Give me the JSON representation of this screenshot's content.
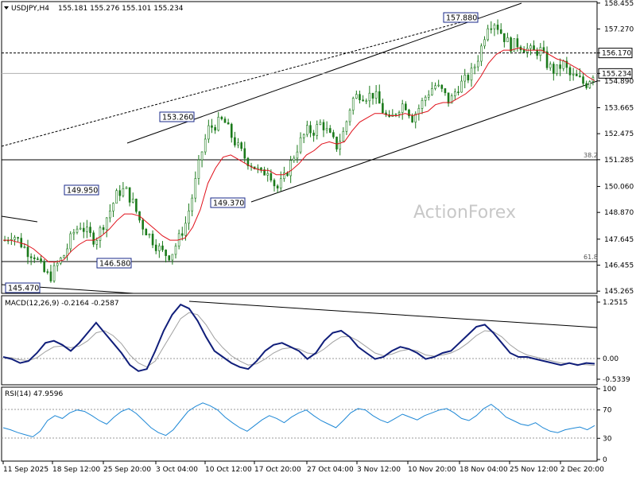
{
  "header": {
    "symbol": "USDJPY,H4",
    "ohlc": "155.181 155.276 155.101 155.234"
  },
  "watermark": "ActionForex",
  "chart_data": [
    {
      "type": "candlestick",
      "name": "price-panel",
      "ylim": [
        145.2,
        158.45
      ],
      "price_ticks": [
        "158.455",
        "157.270",
        "156.170",
        "155.234",
        "154.890",
        "153.665",
        "152.475",
        "151.285",
        "150.060",
        "148.870",
        "147.645",
        "146.455",
        "145.265"
      ],
      "x_labels": [
        "11 Sep 2025",
        "18 Sep 12:00",
        "25 Sep 20:00",
        "3 Oct 04:00",
        "10 Oct 12:00",
        "17 Oct 20:00",
        "27 Oct 04:00",
        "3 Nov 12:00",
        "10 Nov 20:00",
        "18 Nov 04:00",
        "25 Nov 12:00",
        "2 Dec 20:00"
      ],
      "swing_labels": [
        {
          "text": "157.880",
          "value": 157.88
        },
        {
          "text": "153.260",
          "value": 153.26
        },
        {
          "text": "149.950",
          "value": 149.95
        },
        {
          "text": "149.370",
          "value": 149.37
        },
        {
          "text": "146.580",
          "value": 146.58
        },
        {
          "text": "145.470",
          "value": 145.47
        }
      ],
      "horizontal_levels": [
        {
          "value": 156.17,
          "label": "156.170",
          "style": "dashed"
        },
        {
          "value": 155.234,
          "label": "155.234",
          "style": "current"
        },
        {
          "value": 151.28,
          "label": "38.2",
          "style": "solid"
        },
        {
          "value": 146.62,
          "label": "61.8",
          "style": "solid"
        }
      ],
      "close_path": [
        147.6,
        147.9,
        147.5,
        147.1,
        146.9,
        146.2,
        145.9,
        146.5,
        147.0,
        147.9,
        148.3,
        147.9,
        147.6,
        148.3,
        149.0,
        149.8,
        149.9,
        149.3,
        148.4,
        147.9,
        147.4,
        147.0,
        146.9,
        147.6,
        148.4,
        149.8,
        151.5,
        152.7,
        152.9,
        153.1,
        152.4,
        151.8,
        151.3,
        151.0,
        150.6,
        150.9,
        149.9,
        150.4,
        151.2,
        152.0,
        152.6,
        152.6,
        153.0,
        152.4,
        151.9,
        152.6,
        154.0,
        154.3,
        154.2,
        154.3,
        153.6,
        153.0,
        153.6,
        153.9,
        153.2,
        153.7,
        154.3,
        154.7,
        154.4,
        153.9,
        154.6,
        154.9,
        155.3,
        156.2,
        157.5,
        157.6,
        157.0,
        156.5,
        156.6,
        156.4,
        156.2,
        156.3,
        155.6,
        155.3,
        155.7,
        155.1,
        155.0,
        154.7,
        155.234
      ],
      "ema_path": [
        147.6,
        147.6,
        147.5,
        147.4,
        147.2,
        146.9,
        146.6,
        146.6,
        146.7,
        147.1,
        147.4,
        147.6,
        147.6,
        147.8,
        148.1,
        148.5,
        148.8,
        148.8,
        148.7,
        148.4,
        148.1,
        147.8,
        147.6,
        147.6,
        147.7,
        148.2,
        149.0,
        150.2,
        150.9,
        151.4,
        151.5,
        151.3,
        151.1,
        150.9,
        150.8,
        150.8,
        150.6,
        150.6,
        150.8,
        151.1,
        151.5,
        151.7,
        152.0,
        152.1,
        152.0,
        152.1,
        152.6,
        153.0,
        153.2,
        153.4,
        153.4,
        153.3,
        153.3,
        153.4,
        153.3,
        153.4,
        153.5,
        153.8,
        153.9,
        153.9,
        154.1,
        154.3,
        154.6,
        155.1,
        155.7,
        156.1,
        156.3,
        156.3,
        156.4,
        156.3,
        156.3,
        156.3,
        156.1,
        155.9,
        155.8,
        155.6,
        155.4,
        155.1,
        154.9
      ]
    },
    {
      "type": "line",
      "name": "macd-panel",
      "title": "MACD(12,26,9) -0.2164 -0.2587",
      "ylim": [
        -0.7,
        1.35
      ],
      "ticks": [
        "1.2515",
        "0.00",
        "-0.5339"
      ],
      "macd": [
        -0.05,
        -0.1,
        -0.2,
        -0.15,
        0.05,
        0.3,
        0.35,
        0.25,
        0.1,
        0.3,
        0.55,
        0.8,
        0.55,
        0.3,
        0.05,
        -0.25,
        -0.4,
        -0.35,
        0.1,
        0.6,
        1.0,
        1.25,
        1.15,
        0.85,
        0.45,
        0.1,
        -0.05,
        -0.2,
        -0.3,
        -0.35,
        -0.15,
        0.1,
        0.25,
        0.3,
        0.2,
        0.1,
        -0.1,
        0.05,
        0.35,
        0.55,
        0.6,
        0.45,
        0.2,
        0.05,
        -0.1,
        -0.05,
        0.1,
        0.2,
        0.15,
        0.05,
        -0.1,
        -0.05,
        0.05,
        0.1,
        0.3,
        0.5,
        0.7,
        0.75,
        0.55,
        0.3,
        0.05,
        -0.05,
        -0.05,
        -0.1,
        -0.15,
        -0.2,
        -0.25,
        -0.2,
        -0.25,
        -0.2,
        -0.2164
      ],
      "signal": [
        -0.05,
        -0.07,
        -0.12,
        -0.14,
        -0.07,
        0.08,
        0.2,
        0.22,
        0.18,
        0.22,
        0.35,
        0.55,
        0.6,
        0.48,
        0.28,
        0.0,
        -0.2,
        -0.3,
        -0.15,
        0.2,
        0.55,
        0.9,
        1.05,
        1.0,
        0.75,
        0.42,
        0.18,
        -0.02,
        -0.15,
        -0.25,
        -0.22,
        -0.1,
        0.05,
        0.15,
        0.18,
        0.15,
        0.05,
        0.02,
        0.15,
        0.32,
        0.45,
        0.46,
        0.35,
        0.2,
        0.05,
        -0.02,
        0.02,
        0.1,
        0.14,
        0.1,
        0.0,
        -0.03,
        0.0,
        0.05,
        0.15,
        0.3,
        0.48,
        0.6,
        0.58,
        0.45,
        0.25,
        0.1,
        0.0,
        -0.05,
        -0.1,
        -0.15,
        -0.2,
        -0.21,
        -0.23,
        -0.24,
        -0.2587
      ]
    },
    {
      "type": "line",
      "name": "rsi-panel",
      "title": "RSI(14) 47.9596",
      "ylim": [
        0,
        100
      ],
      "ticks": [
        "100",
        "70",
        "30",
        "0"
      ],
      "rsi": [
        45,
        42,
        38,
        35,
        32,
        40,
        55,
        62,
        58,
        66,
        70,
        68,
        62,
        55,
        50,
        60,
        68,
        72,
        65,
        55,
        45,
        38,
        34,
        42,
        55,
        68,
        75,
        80,
        76,
        70,
        60,
        52,
        45,
        40,
        48,
        56,
        62,
        58,
        52,
        60,
        66,
        70,
        62,
        55,
        50,
        45,
        55,
        66,
        72,
        70,
        62,
        56,
        52,
        58,
        64,
        60,
        56,
        62,
        66,
        70,
        72,
        66,
        58,
        55,
        62,
        72,
        78,
        70,
        60,
        55,
        50,
        48,
        52,
        45,
        40,
        38,
        42,
        44,
        46,
        42,
        47.96
      ]
    }
  ]
}
